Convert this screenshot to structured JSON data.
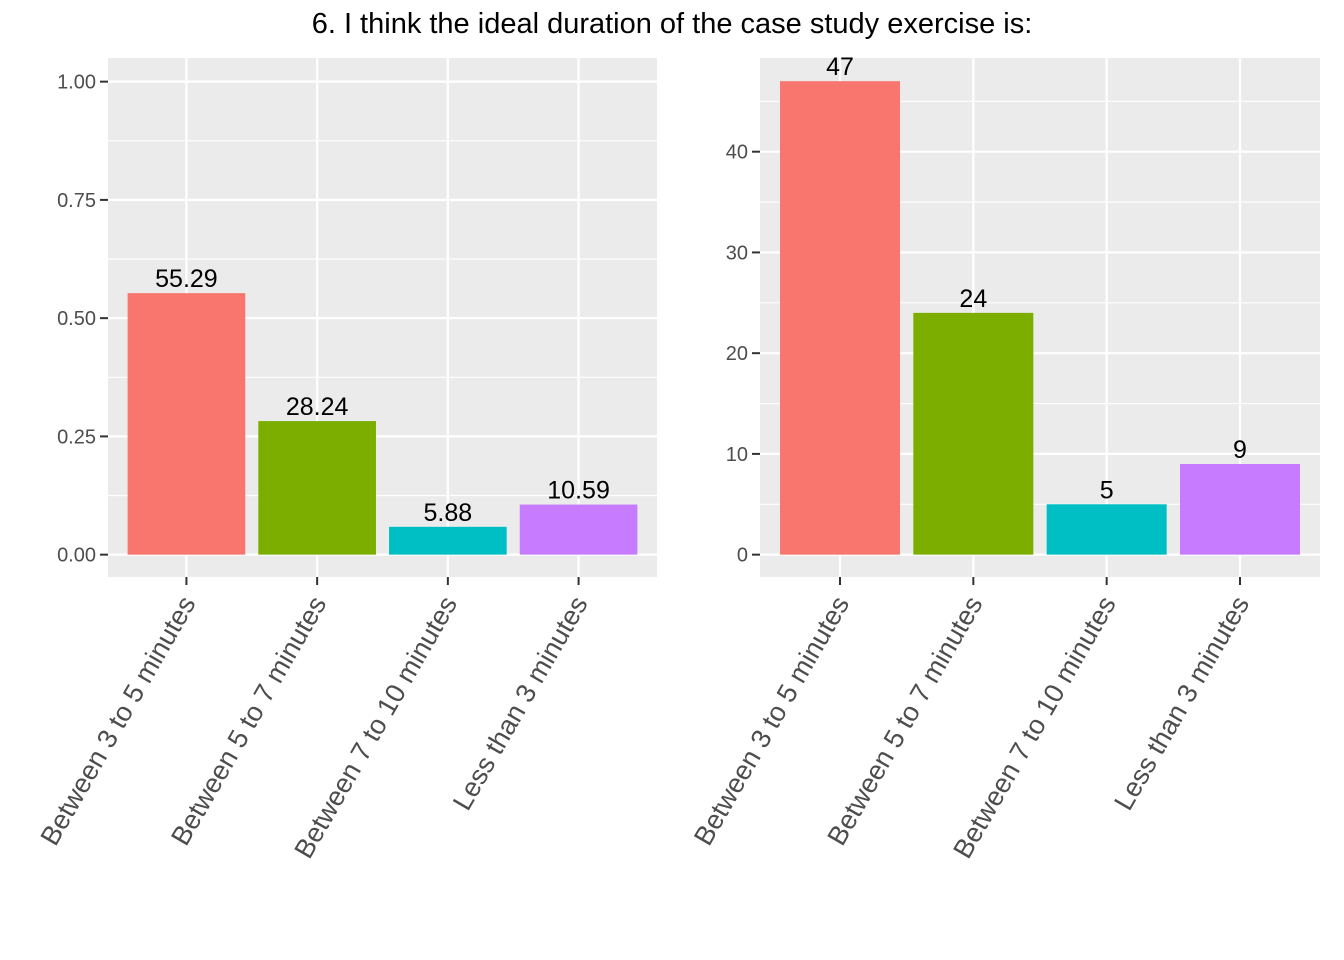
{
  "title": "6. I think the ideal duration of the case study exercise is:",
  "colors": {
    "panel_bg": "#ebebeb",
    "grid": "#ffffff",
    "tick": "#333333",
    "bars": [
      "#f8766d",
      "#7cae00",
      "#00bfc4",
      "#c77cff"
    ]
  },
  "chart_data": [
    {
      "type": "bar",
      "categories": [
        "Between 3 to 5 minutes",
        "Between 5 to 7 minutes",
        "Between 7 to 10 minutes",
        "Less than 3 minutes"
      ],
      "values": [
        0.5529,
        0.2824,
        0.0588,
        0.1059
      ],
      "data_labels": [
        "55.29",
        "28.24",
        "5.88",
        "10.59"
      ],
      "ylim": [
        0,
        1.0
      ],
      "yticks": [
        0,
        0.25,
        0.5,
        0.75,
        1.0
      ],
      "ytick_labels": [
        "0.00",
        "0.25",
        "0.50",
        "0.75",
        "1.00"
      ],
      "xlabel": "",
      "ylabel": "",
      "grid": true,
      "legend": "none"
    },
    {
      "type": "bar",
      "categories": [
        "Between 3 to 5 minutes",
        "Between 5 to 7 minutes",
        "Between 7 to 10 minutes",
        "Less than 3 minutes"
      ],
      "values": [
        47,
        24,
        5,
        9
      ],
      "data_labels": [
        "47",
        "24",
        "5",
        "9"
      ],
      "ylim": [
        0,
        47
      ],
      "yticks": [
        0,
        10,
        20,
        30,
        40
      ],
      "ytick_labels": [
        "0",
        "10",
        "20",
        "30",
        "40"
      ],
      "xlabel": "",
      "ylabel": "",
      "grid": true,
      "legend": "none"
    }
  ]
}
